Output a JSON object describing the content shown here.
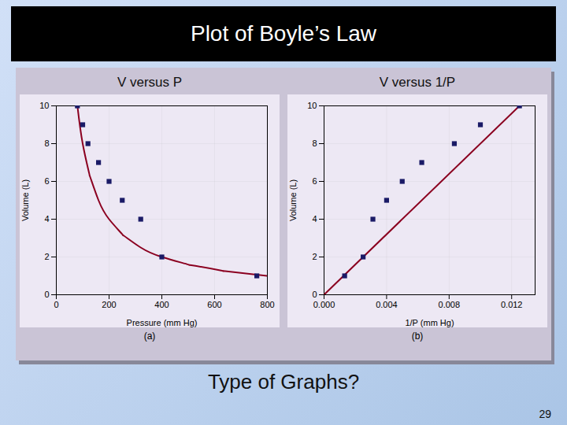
{
  "title": "Plot of Boyle’s Law",
  "annotations": [
    "Type of Graphs?",
    "29"
  ],
  "chart_data": [
    {
      "type": "scatter",
      "title": "V versus P",
      "annotations": [
        "(a)"
      ],
      "x_label": "Pressure (mm Hg)",
      "y_label": "Volume (L)",
      "xlim": [
        0,
        800
      ],
      "ylim": [
        0,
        10
      ],
      "xticks": [
        0,
        200,
        400,
        600,
        800
      ],
      "yticks": [
        0,
        2,
        4,
        6,
        8,
        10
      ],
      "grid": true,
      "series": [
        {
          "type": "line",
          "color": "#8b0020",
          "line_style": "solid",
          "x": [
            80,
            100,
            125,
            128,
            160,
            200,
            250,
            256,
            320,
            400,
            500,
            512,
            625,
            640,
            800
          ],
          "values": [
            10,
            8,
            6.4,
            6.25,
            5,
            4,
            3.2,
            3.125,
            2.5,
            2,
            1.6,
            1.5625,
            1.28,
            1.25,
            1
          ]
        },
        {
          "type": "scatter",
          "color": "#1a1a66",
          "marker": "square",
          "x": [
            80,
            100,
            120,
            160,
            200,
            250,
            320,
            400,
            760
          ],
          "values": [
            10,
            9,
            8,
            7,
            6,
            5,
            4,
            2,
            1
          ]
        }
      ]
    },
    {
      "type": "scatter",
      "title": "V versus 1/P",
      "annotations": [
        "(b)"
      ],
      "x_label": "1/P (mm Hg)",
      "y_label": "Volume (L)",
      "xlim": [
        0.0,
        0.0135
      ],
      "ylim": [
        0,
        10
      ],
      "xticks": [
        {
          "value": 0,
          "label": "0.000"
        },
        0.004,
        0.008,
        0.012
      ],
      "yticks": [
        0,
        2,
        4,
        6,
        8,
        10
      ],
      "grid": true,
      "series": [
        {
          "type": "line",
          "color": "#8b0020",
          "line_style": "solid",
          "x": [
            0,
            0.0125
          ],
          "values": [
            0,
            10
          ]
        },
        {
          "type": "scatter",
          "color": "#1a1a66",
          "marker": "square",
          "x": [
            0.0013157894736842105,
            0.0025,
            0.003125,
            0.004,
            0.005,
            0.00625,
            0.008333333333333333,
            0.01,
            0.0125
          ],
          "values": [
            1,
            2,
            4,
            5,
            6,
            7,
            8,
            9,
            10
          ]
        }
      ]
    }
  ]
}
